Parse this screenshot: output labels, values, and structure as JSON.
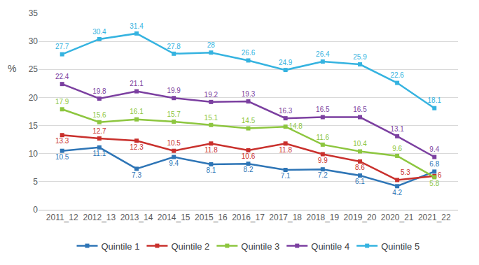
{
  "chart_data": {
    "type": "line",
    "y_label": "%",
    "categories": [
      "2011_12",
      "2012_13",
      "2013_14",
      "2014_15",
      "2015_16",
      "2016_17",
      "2017_18",
      "2018_19",
      "2019_20",
      "2020_21",
      "2021_22"
    ],
    "series": [
      {
        "name": "Quintile 1",
        "color": "#2e75b6",
        "values": [
          10.5,
          11.1,
          7.3,
          9.4,
          8.1,
          8.2,
          7.1,
          7.2,
          6.1,
          4.2,
          6.8
        ]
      },
      {
        "name": "Quintile 2",
        "color": "#c9302c",
        "values": [
          13.3,
          12.7,
          12.3,
          10.5,
          11.8,
          10.6,
          11.8,
          9.9,
          8.6,
          5.3,
          6
        ]
      },
      {
        "name": "Quintile 3",
        "color": "#8dc63f",
        "values": [
          17.9,
          15.6,
          16.1,
          15.7,
          15.1,
          14.5,
          14.8,
          11.6,
          10.4,
          9.6,
          5.8
        ]
      },
      {
        "name": "Quintile 4",
        "color": "#7b3fa0",
        "values": [
          22.4,
          19.8,
          21.1,
          19.9,
          19.2,
          19.3,
          16.3,
          16.5,
          16.5,
          13.1,
          9.4
        ]
      },
      {
        "name": "Quintile 5",
        "color": "#35b3e0",
        "values": [
          27.7,
          30.4,
          31.4,
          27.8,
          28,
          26.6,
          24.9,
          26.4,
          25.9,
          22.6,
          18.1
        ]
      }
    ],
    "ylim": [
      0,
      35
    ],
    "yticks": [
      0,
      5,
      10,
      15,
      20,
      25,
      30,
      35
    ],
    "grid": true,
    "legend": "bottom",
    "data_labels": true,
    "marker": "square"
  }
}
